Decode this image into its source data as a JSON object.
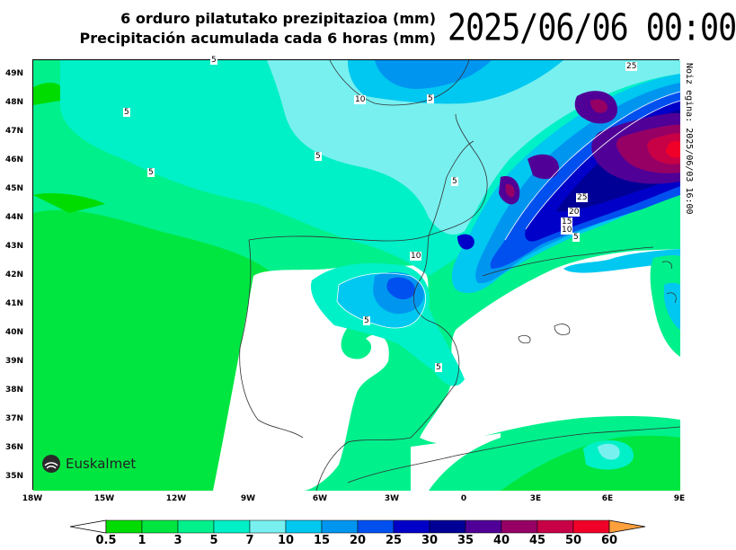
{
  "title": {
    "line1": "6 orduro pilatutako prezipitazioa (mm)",
    "line2": "Precipitación acumulada cada 6 horas (mm)",
    "valid_time": "2025/06/06 00:00"
  },
  "run_label": "Noiz egina: 2025/06/03 16:00",
  "logo_text": "Euskalmet",
  "axes": {
    "lat_labels": [
      "49N",
      "48N",
      "47N",
      "46N",
      "45N",
      "44N",
      "43N",
      "42N",
      "41N",
      "40N",
      "39N",
      "38N",
      "37N",
      "36N",
      "35N"
    ],
    "lon_labels": [
      "18W",
      "15W",
      "12W",
      "9W",
      "6W",
      "3W",
      "0",
      "3E",
      "6E",
      "9E"
    ]
  },
  "contour_labels": [
    "5",
    "10",
    "5",
    "5",
    "5",
    "5",
    "5",
    "25",
    "25",
    "20",
    "15",
    "10",
    "5",
    "10",
    "5",
    "5"
  ],
  "colorbar": {
    "ticks": [
      "0.5",
      "1",
      "3",
      "5",
      "7",
      "10",
      "15",
      "20",
      "25",
      "30",
      "35",
      "40",
      "45",
      "50",
      "60"
    ],
    "colors": [
      "#00dc00",
      "#00e641",
      "#00f08c",
      "#00f0c8",
      "#78f0f0",
      "#00c8f0",
      "#0096f0",
      "#0050f0",
      "#0000c8",
      "#000096",
      "#500096",
      "#960064",
      "#c80046",
      "#f00028",
      "#ff6432",
      "#ffa03c"
    ]
  }
}
